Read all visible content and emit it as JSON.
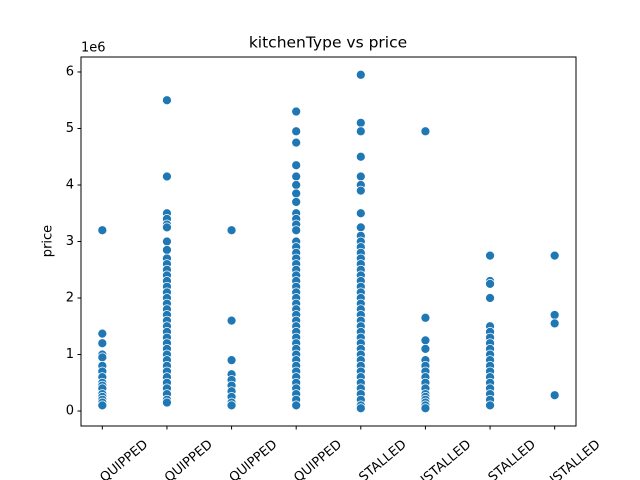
{
  "chart_data": {
    "type": "scatter",
    "title": "kitchenType vs price",
    "ylabel": "price",
    "y_offset_text": "1e6",
    "color": "#1f77b4",
    "grid": false,
    "xlim": [
      -0.33,
      7.33
    ],
    "xticks": [
      {
        "value": 0,
        "label": "QUIPPED"
      },
      {
        "value": 1,
        "label": "QUIPPED"
      },
      {
        "value": 2,
        "label": "QUIPPED"
      },
      {
        "value": 3,
        "label": "QUIPPED"
      },
      {
        "value": 4,
        "label": "STALLED"
      },
      {
        "value": 5,
        "label": "ISTALLED"
      },
      {
        "value": 6,
        "label": "STALLED"
      },
      {
        "value": 7,
        "label": "ISTALLED"
      }
    ],
    "ylim": [
      -0.265,
      6.265
    ],
    "yticks": [
      0,
      1,
      2,
      3,
      4,
      5,
      6
    ],
    "x": [
      0,
      0,
      0,
      0,
      0,
      0,
      0,
      0,
      0,
      0,
      0,
      0,
      0,
      0,
      0,
      0,
      1,
      1,
      1,
      1,
      1,
      1,
      1,
      1,
      1,
      1,
      1,
      1,
      1,
      1,
      1,
      1,
      1,
      1,
      1,
      1,
      1,
      1,
      1,
      1,
      1,
      1,
      1,
      1,
      1,
      1,
      1,
      1,
      1,
      1,
      1,
      2,
      2,
      2,
      2,
      2,
      2,
      2,
      2,
      2,
      2,
      3,
      3,
      3,
      3,
      3,
      3,
      3,
      3,
      3,
      3,
      3,
      3,
      3,
      3,
      3,
      3,
      3,
      3,
      3,
      3,
      3,
      3,
      3,
      3,
      3,
      3,
      3,
      3,
      3,
      3,
      3,
      3,
      3,
      3,
      3,
      3,
      3,
      3,
      3,
      3,
      3,
      3,
      4,
      4,
      4,
      4,
      4,
      4,
      4,
      4,
      4,
      4,
      4,
      4,
      4,
      4,
      4,
      4,
      4,
      4,
      4,
      4,
      4,
      4,
      4,
      4,
      4,
      4,
      4,
      4,
      4,
      4,
      4,
      4,
      4,
      4,
      4,
      4,
      4,
      4,
      4,
      4,
      4,
      5,
      5,
      5,
      5,
      5,
      5,
      5,
      5,
      5,
      5,
      5,
      5,
      5,
      5,
      5,
      5,
      6,
      6,
      6,
      6,
      6,
      6,
      6,
      6,
      6,
      6,
      6,
      6,
      6,
      6,
      6,
      6,
      6,
      6,
      6,
      7,
      7,
      7,
      7
    ],
    "values": [
      3.2,
      1.37,
      1.2,
      1.0,
      0.95,
      0.8,
      0.7,
      0.6,
      0.5,
      0.45,
      0.4,
      0.3,
      0.25,
      0.2,
      0.15,
      0.1,
      5.5,
      4.15,
      3.5,
      3.4,
      3.3,
      3.25,
      3.0,
      2.85,
      2.7,
      2.6,
      2.5,
      2.4,
      2.3,
      2.2,
      2.1,
      2.0,
      1.9,
      1.8,
      1.7,
      1.6,
      1.5,
      1.4,
      1.3,
      1.2,
      1.1,
      1.0,
      0.9,
      0.8,
      0.7,
      0.6,
      0.5,
      0.4,
      0.3,
      0.2,
      0.15,
      3.2,
      1.6,
      0.9,
      0.65,
      0.55,
      0.45,
      0.35,
      0.25,
      0.15,
      0.1,
      5.3,
      4.95,
      4.75,
      4.35,
      4.15,
      4.0,
      3.85,
      3.7,
      3.5,
      3.4,
      3.3,
      3.2,
      3.0,
      2.9,
      2.8,
      2.7,
      2.6,
      2.5,
      2.4,
      2.3,
      2.2,
      2.1,
      2.0,
      1.9,
      1.8,
      1.7,
      1.6,
      1.5,
      1.4,
      1.3,
      1.2,
      1.1,
      1.0,
      0.9,
      0.8,
      0.7,
      0.6,
      0.5,
      0.4,
      0.3,
      0.2,
      0.1,
      5.95,
      5.1,
      4.95,
      4.5,
      4.15,
      4.0,
      3.9,
      3.5,
      3.25,
      3.1,
      3.0,
      2.9,
      2.8,
      2.7,
      2.6,
      2.5,
      2.4,
      2.3,
      2.2,
      2.1,
      2.0,
      1.9,
      1.8,
      1.7,
      1.6,
      1.5,
      1.4,
      1.3,
      1.2,
      1.1,
      1.0,
      0.9,
      0.8,
      0.7,
      0.6,
      0.5,
      0.4,
      0.3,
      0.2,
      0.1,
      0.05,
      4.95,
      1.65,
      1.25,
      1.1,
      0.9,
      0.8,
      0.7,
      0.6,
      0.5,
      0.4,
      0.3,
      0.25,
      0.2,
      0.15,
      0.1,
      0.05,
      2.75,
      2.3,
      2.25,
      2.0,
      1.5,
      1.4,
      1.3,
      1.2,
      1.1,
      1.0,
      0.9,
      0.8,
      0.7,
      0.6,
      0.5,
      0.4,
      0.3,
      0.2,
      0.1,
      2.75,
      1.7,
      1.55,
      0.28
    ]
  }
}
